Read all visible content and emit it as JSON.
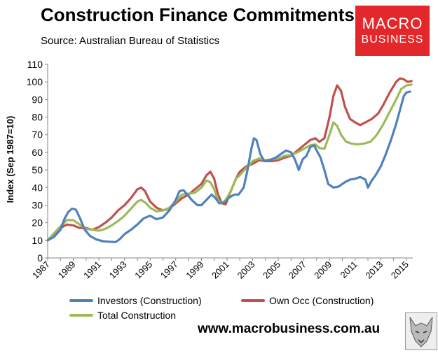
{
  "header": {
    "title": "Construction Finance Commitments",
    "subtitle": "Source: Australian Bureau of Statistics"
  },
  "logo": {
    "line1": "MACRO",
    "line2": "BUSINESS",
    "color": "#e4272b"
  },
  "footer": {
    "website": "www.macrobusiness.com.au"
  },
  "chart_data": {
    "type": "line",
    "title": "Construction Finance Commitments",
    "xlabel": "",
    "ylabel": "Index (Sep 1987=10)",
    "xlim": [
      1987,
      2015.5
    ],
    "ylim": [
      0,
      110
    ],
    "yticks": [
      0,
      10,
      20,
      30,
      40,
      50,
      60,
      70,
      80,
      90,
      100,
      110
    ],
    "xticks": [
      1987,
      1989,
      1991,
      1993,
      1995,
      1997,
      1999,
      2001,
      2003,
      2005,
      2007,
      2009,
      2011,
      2013,
      2015
    ],
    "grid": false,
    "legend": "bottom",
    "series": [
      {
        "name": "Investors (Construction)",
        "color": "#4f81bd",
        "points": [
          [
            1987.0,
            10
          ],
          [
            1987.5,
            12
          ],
          [
            1988.0,
            16
          ],
          [
            1988.3,
            22
          ],
          [
            1988.6,
            26
          ],
          [
            1988.9,
            28
          ],
          [
            1989.2,
            27.5
          ],
          [
            1989.5,
            23
          ],
          [
            1989.9,
            16
          ],
          [
            1990.3,
            12.5
          ],
          [
            1990.8,
            10.5
          ],
          [
            1991.3,
            9.5
          ],
          [
            1991.8,
            9.2
          ],
          [
            1992.3,
            9
          ],
          [
            1992.6,
            10.5
          ],
          [
            1993.0,
            13.5
          ],
          [
            1993.5,
            16
          ],
          [
            1994.0,
            19
          ],
          [
            1994.5,
            22.5
          ],
          [
            1995.0,
            24
          ],
          [
            1995.5,
            22
          ],
          [
            1996.0,
            23
          ],
          [
            1996.5,
            27
          ],
          [
            1997.0,
            33
          ],
          [
            1997.3,
            38
          ],
          [
            1997.6,
            38.5
          ],
          [
            1997.9,
            36
          ],
          [
            1998.3,
            32.5
          ],
          [
            1998.7,
            30
          ],
          [
            1999.0,
            30
          ],
          [
            1999.4,
            33
          ],
          [
            1999.8,
            36
          ],
          [
            2000.1,
            34
          ],
          [
            2000.4,
            31
          ],
          [
            2000.8,
            31.5
          ],
          [
            2001.2,
            34.5
          ],
          [
            2001.6,
            36
          ],
          [
            2001.9,
            36
          ],
          [
            2002.3,
            40
          ],
          [
            2002.6,
            50
          ],
          [
            2002.9,
            62
          ],
          [
            2003.1,
            68
          ],
          [
            2003.3,
            67
          ],
          [
            2003.6,
            59
          ],
          [
            2003.9,
            55
          ],
          [
            2004.3,
            55.5
          ],
          [
            2004.8,
            57
          ],
          [
            2005.2,
            59
          ],
          [
            2005.6,
            61
          ],
          [
            2006.0,
            60
          ],
          [
            2006.3,
            56
          ],
          [
            2006.6,
            50
          ],
          [
            2006.9,
            56
          ],
          [
            2007.2,
            58
          ],
          [
            2007.5,
            63
          ],
          [
            2007.8,
            64
          ],
          [
            2008.0,
            61
          ],
          [
            2008.3,
            57
          ],
          [
            2008.6,
            50
          ],
          [
            2008.9,
            42
          ],
          [
            2009.3,
            40
          ],
          [
            2009.7,
            40.5
          ],
          [
            2010.2,
            43
          ],
          [
            2010.6,
            44.5
          ],
          [
            2011.0,
            45
          ],
          [
            2011.4,
            46
          ],
          [
            2011.8,
            44.5
          ],
          [
            2012.0,
            40
          ],
          [
            2012.3,
            44
          ],
          [
            2012.6,
            47
          ],
          [
            2013.0,
            52
          ],
          [
            2013.4,
            59
          ],
          [
            2013.8,
            67
          ],
          [
            2014.2,
            76
          ],
          [
            2014.5,
            84
          ],
          [
            2014.8,
            92
          ],
          [
            2015.0,
            94
          ],
          [
            2015.3,
            94.5
          ]
        ]
      },
      {
        "name": "Own Occ (Construction)",
        "color": "#c0504d",
        "points": [
          [
            1987.0,
            10
          ],
          [
            1987.5,
            13
          ],
          [
            1988.0,
            17
          ],
          [
            1988.5,
            19
          ],
          [
            1989.0,
            18.5
          ],
          [
            1989.5,
            17
          ],
          [
            1990.0,
            17
          ],
          [
            1990.5,
            16
          ],
          [
            1991.0,
            17.5
          ],
          [
            1991.5,
            20
          ],
          [
            1992.0,
            23
          ],
          [
            1992.5,
            27
          ],
          [
            1993.0,
            30
          ],
          [
            1993.5,
            34
          ],
          [
            1994.0,
            39
          ],
          [
            1994.3,
            40
          ],
          [
            1994.6,
            38
          ],
          [
            1995.0,
            32
          ],
          [
            1995.5,
            28.5
          ],
          [
            1996.0,
            27
          ],
          [
            1996.5,
            28
          ],
          [
            1997.0,
            31
          ],
          [
            1997.5,
            34
          ],
          [
            1998.0,
            36
          ],
          [
            1998.5,
            39
          ],
          [
            1999.0,
            42
          ],
          [
            1999.4,
            47
          ],
          [
            1999.7,
            49
          ],
          [
            2000.0,
            45
          ],
          [
            2000.3,
            36
          ],
          [
            2000.6,
            31
          ],
          [
            2000.9,
            30.5
          ],
          [
            2001.3,
            38
          ],
          [
            2001.7,
            45
          ],
          [
            2002.0,
            49
          ],
          [
            2002.5,
            52
          ],
          [
            2003.0,
            53.5
          ],
          [
            2003.5,
            55.5
          ],
          [
            2004.0,
            55
          ],
          [
            2004.5,
            55
          ],
          [
            2005.0,
            55.5
          ],
          [
            2005.5,
            57
          ],
          [
            2006.0,
            58
          ],
          [
            2006.5,
            61
          ],
          [
            2007.0,
            64
          ],
          [
            2007.5,
            67
          ],
          [
            2007.9,
            68
          ],
          [
            2008.2,
            66
          ],
          [
            2008.6,
            68
          ],
          [
            2009.0,
            80
          ],
          [
            2009.3,
            92
          ],
          [
            2009.6,
            98
          ],
          [
            2009.9,
            95
          ],
          [
            2010.2,
            86
          ],
          [
            2010.6,
            79
          ],
          [
            2011.0,
            77
          ],
          [
            2011.4,
            75.5
          ],
          [
            2011.8,
            77
          ],
          [
            2012.3,
            79
          ],
          [
            2012.8,
            82
          ],
          [
            2013.2,
            87
          ],
          [
            2013.7,
            94
          ],
          [
            2014.2,
            100
          ],
          [
            2014.5,
            102
          ],
          [
            2014.8,
            101.5
          ],
          [
            2015.1,
            100
          ],
          [
            2015.4,
            100.5
          ]
        ]
      },
      {
        "name": "Total Construction",
        "color": "#9bbb59",
        "points": [
          [
            1987.0,
            10
          ],
          [
            1987.5,
            14
          ],
          [
            1988.0,
            18
          ],
          [
            1988.5,
            21.5
          ],
          [
            1989.0,
            21.5
          ],
          [
            1989.5,
            19
          ],
          [
            1990.0,
            16.5
          ],
          [
            1990.5,
            16
          ],
          [
            1991.0,
            15.5
          ],
          [
            1991.5,
            16.5
          ],
          [
            1992.0,
            18.5
          ],
          [
            1992.5,
            21
          ],
          [
            1993.0,
            24
          ],
          [
            1993.5,
            28
          ],
          [
            1994.0,
            32
          ],
          [
            1994.3,
            33
          ],
          [
            1994.7,
            31
          ],
          [
            1995.0,
            28.5
          ],
          [
            1995.5,
            26.5
          ],
          [
            1996.0,
            27
          ],
          [
            1996.5,
            28.5
          ],
          [
            1997.0,
            32
          ],
          [
            1997.5,
            36
          ],
          [
            1998.0,
            36.5
          ],
          [
            1998.5,
            37
          ],
          [
            1999.0,
            40
          ],
          [
            1999.4,
            44
          ],
          [
            1999.7,
            43
          ],
          [
            2000.0,
            39
          ],
          [
            2000.3,
            33
          ],
          [
            2000.6,
            31
          ],
          [
            2000.9,
            33
          ],
          [
            2001.3,
            38
          ],
          [
            2001.7,
            45
          ],
          [
            2002.0,
            47
          ],
          [
            2002.5,
            51
          ],
          [
            2003.0,
            55
          ],
          [
            2003.5,
            56.5
          ],
          [
            2004.0,
            55.5
          ],
          [
            2004.5,
            56
          ],
          [
            2005.0,
            56.5
          ],
          [
            2005.5,
            58
          ],
          [
            2006.0,
            58.5
          ],
          [
            2006.5,
            60
          ],
          [
            2007.0,
            62
          ],
          [
            2007.5,
            64
          ],
          [
            2007.9,
            64.5
          ],
          [
            2008.2,
            62.5
          ],
          [
            2008.6,
            62
          ],
          [
            2009.0,
            70
          ],
          [
            2009.3,
            77
          ],
          [
            2009.6,
            75
          ],
          [
            2009.9,
            70
          ],
          [
            2010.3,
            66
          ],
          [
            2010.7,
            65
          ],
          [
            2011.2,
            64.5
          ],
          [
            2011.7,
            65
          ],
          [
            2012.2,
            66
          ],
          [
            2012.7,
            70
          ],
          [
            2013.2,
            76
          ],
          [
            2013.7,
            83
          ],
          [
            2014.2,
            90
          ],
          [
            2014.6,
            96
          ],
          [
            2015.0,
            98
          ],
          [
            2015.4,
            98.5
          ]
        ]
      }
    ]
  }
}
